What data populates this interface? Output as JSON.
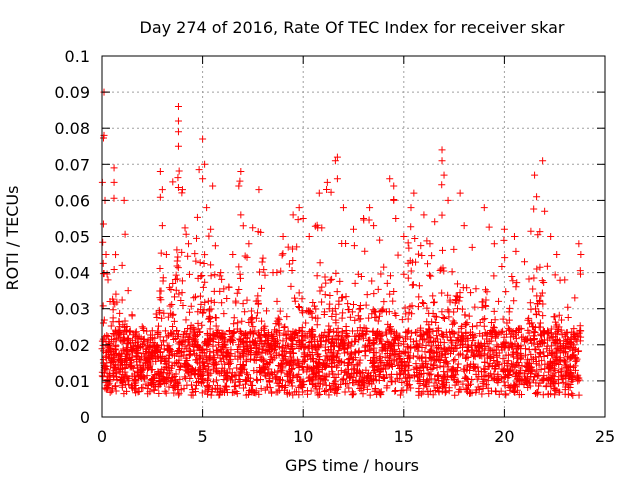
{
  "chart_data": {
    "type": "scatter",
    "title": "Day 274 of 2016, Rate Of TEC Index for receiver skar",
    "xlabel": "GPS time / hours",
    "ylabel": "ROTI / TECUs",
    "xlim": [
      0,
      25
    ],
    "ylim": [
      0,
      0.1
    ],
    "xticks": [
      0,
      5,
      10,
      15,
      20,
      25
    ],
    "xtick_labels": [
      "0",
      "5",
      "10",
      "15",
      "20",
      "25"
    ],
    "yticks": [
      0,
      0.01,
      0.02,
      0.03,
      0.04,
      0.05,
      0.06,
      0.07,
      0.08,
      0.09,
      0.1
    ],
    "ytick_labels": [
      "0",
      "0.01",
      "0.02",
      "0.03",
      "0.04",
      "0.05",
      "0.06",
      "0.07",
      "0.08",
      "0.09",
      "0.1"
    ],
    "grid": true,
    "marker": "+",
    "color": "#ff0000",
    "series": [
      {
        "name": "ROTI",
        "points": [
          [
            0.1,
            0.09
          ],
          [
            0.1,
            0.078
          ],
          [
            0.15,
            0.06
          ],
          [
            0.2,
            0.045
          ],
          [
            0.3,
            0.038
          ],
          [
            0.4,
            0.032
          ],
          [
            0.6,
            0.069
          ],
          [
            0.6,
            0.065
          ],
          [
            1.1,
            0.06
          ],
          [
            1.0,
            0.042
          ],
          [
            1.3,
            0.035
          ],
          [
            1.5,
            0.028
          ],
          [
            2.0,
            0.025
          ],
          [
            2.5,
            0.022
          ],
          [
            2.9,
            0.068
          ],
          [
            3.0,
            0.063
          ],
          [
            3.0,
            0.053
          ],
          [
            3.2,
            0.045
          ],
          [
            3.8,
            0.086
          ],
          [
            3.8,
            0.082
          ],
          [
            3.8,
            0.079
          ],
          [
            3.8,
            0.075
          ],
          [
            4.0,
            0.063
          ],
          [
            4.3,
            0.048
          ],
          [
            5.0,
            0.077
          ],
          [
            5.1,
            0.07
          ],
          [
            5.0,
            0.066
          ],
          [
            5.2,
            0.058
          ],
          [
            5.5,
            0.064
          ],
          [
            5.4,
            0.052
          ],
          [
            5.9,
            0.04
          ],
          [
            6.3,
            0.036
          ],
          [
            6.5,
            0.045
          ],
          [
            6.9,
            0.068
          ],
          [
            6.8,
            0.064
          ],
          [
            6.9,
            0.056
          ],
          [
            7.3,
            0.048
          ],
          [
            7.8,
            0.063
          ],
          [
            8.0,
            0.044
          ],
          [
            8.5,
            0.04
          ],
          [
            9.0,
            0.05
          ],
          [
            9.5,
            0.056
          ],
          [
            9.8,
            0.058
          ],
          [
            10.0,
            0.055
          ],
          [
            10.3,
            0.05
          ],
          [
            10.8,
            0.062
          ],
          [
            11.2,
            0.065
          ],
          [
            11.6,
            0.071
          ],
          [
            11.7,
            0.072
          ],
          [
            11.7,
            0.066
          ],
          [
            12.0,
            0.058
          ],
          [
            12.5,
            0.052
          ],
          [
            13.0,
            0.055
          ],
          [
            13.3,
            0.058
          ],
          [
            13.5,
            0.053
          ],
          [
            13.8,
            0.049
          ],
          [
            14.3,
            0.066
          ],
          [
            14.5,
            0.064
          ],
          [
            14.5,
            0.06
          ],
          [
            14.6,
            0.055
          ],
          [
            15.0,
            0.05
          ],
          [
            15.5,
            0.062
          ],
          [
            16.0,
            0.056
          ],
          [
            16.3,
            0.048
          ],
          [
            16.9,
            0.074
          ],
          [
            16.9,
            0.071
          ],
          [
            17.0,
            0.067
          ],
          [
            17.2,
            0.06
          ],
          [
            17.8,
            0.062
          ],
          [
            18.0,
            0.053
          ],
          [
            18.4,
            0.047
          ],
          [
            19.0,
            0.058
          ],
          [
            19.5,
            0.048
          ],
          [
            20.0,
            0.052
          ],
          [
            20.5,
            0.05
          ],
          [
            21.0,
            0.043
          ],
          [
            21.5,
            0.067
          ],
          [
            21.6,
            0.061
          ],
          [
            21.9,
            0.071
          ],
          [
            22.0,
            0.057
          ],
          [
            22.3,
            0.05
          ],
          [
            22.6,
            0.045
          ],
          [
            23.0,
            0.038
          ],
          [
            23.5,
            0.033
          ],
          [
            23.7,
            0.048
          ],
          [
            23.8,
            0.045
          ]
        ]
      }
    ]
  }
}
